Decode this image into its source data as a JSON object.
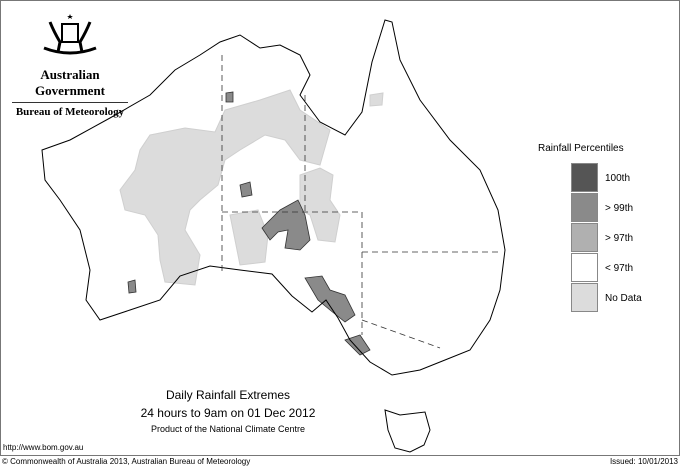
{
  "header": {
    "government": "Australian Government",
    "bureau": "Bureau of Meteorology"
  },
  "legend": {
    "title": "Rainfall Percentiles",
    "items": [
      {
        "label": "100th",
        "color": "#555555"
      },
      {
        "label": "> 99th",
        "color": "#8a8a8a"
      },
      {
        "label": "> 97th",
        "color": "#b0b0b0"
      },
      {
        "label": "< 97th",
        "color": "#ffffff"
      },
      {
        "label": "No Data",
        "color": "#dcdcdc"
      }
    ]
  },
  "titles": {
    "main": "Daily Rainfall Extremes",
    "period": "24 hours to 9am on 01 Dec 2012",
    "product": "Product of the National Climate Centre"
  },
  "footer": {
    "url": "http://www.bom.gov.au",
    "copyright": "© Commonwealth of Australia 2013, Australian Bureau of Meteorology",
    "issued": "Issued: 10/01/2013"
  }
}
